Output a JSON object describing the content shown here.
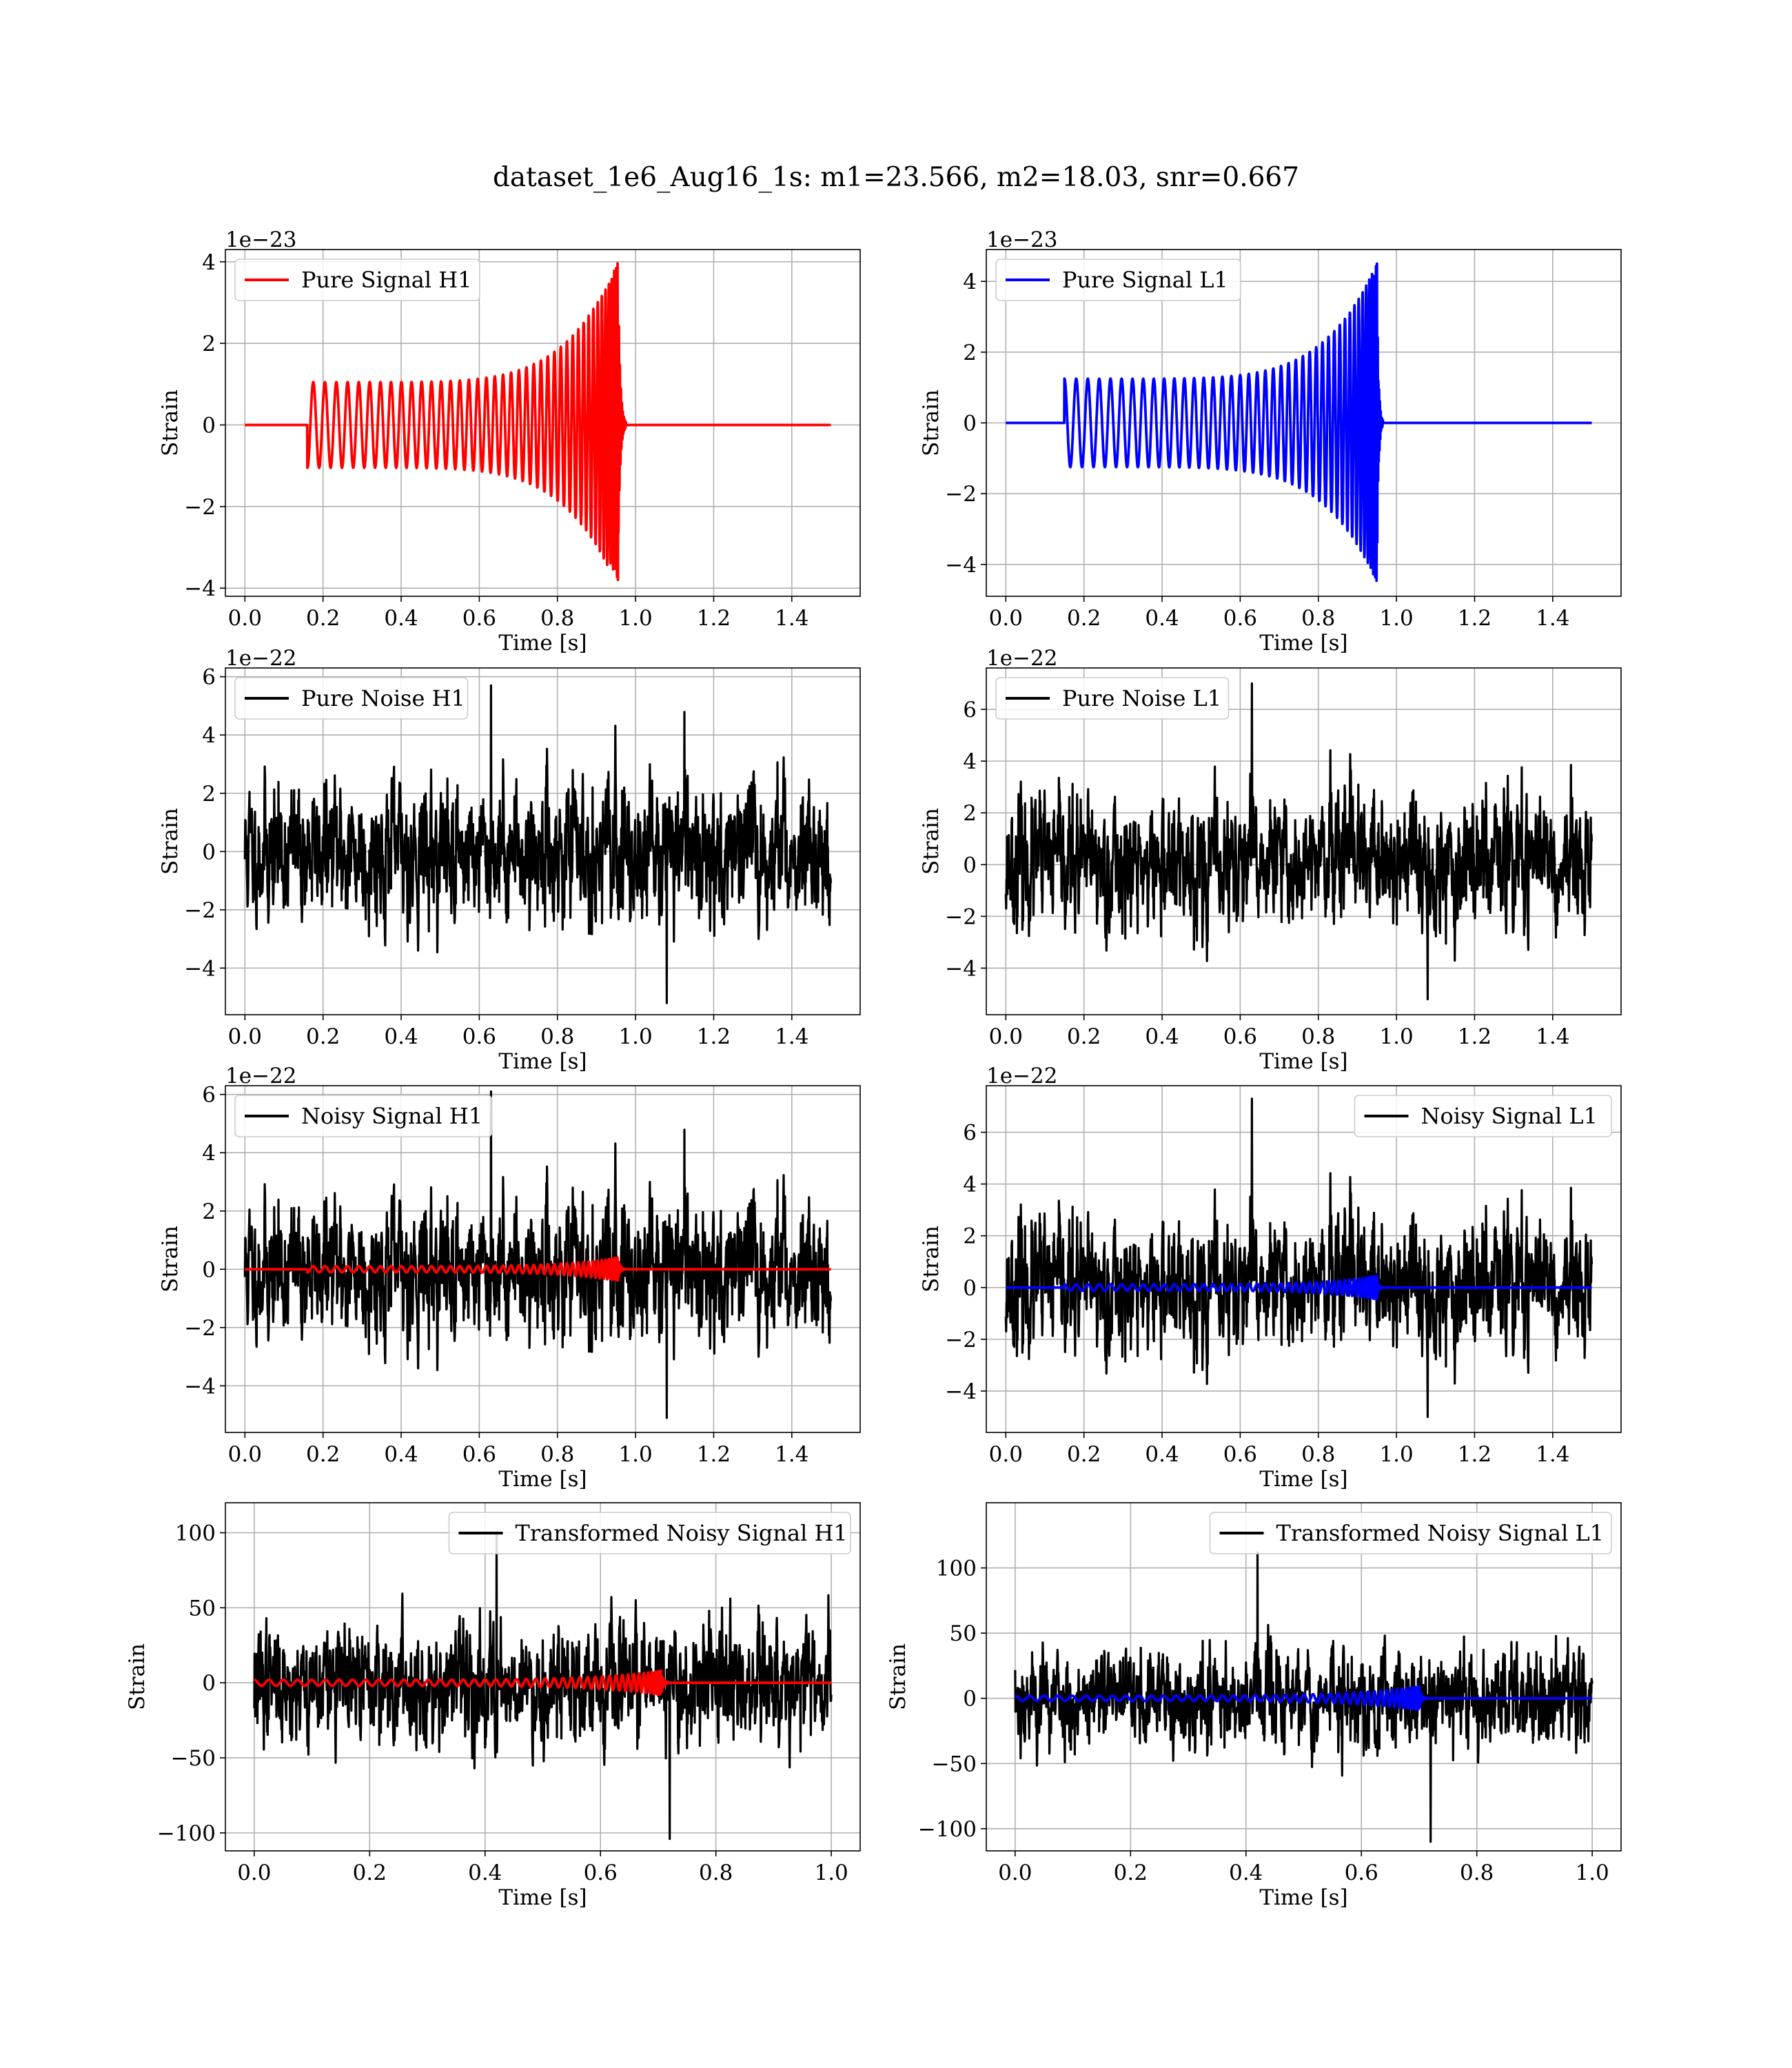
{
  "figure": {
    "title": "dataset_1e6_Aug16_1s: m1=23.566, m2=18.03, snr=0.667"
  },
  "colors": {
    "h1_signal": "#ff0000",
    "l1_signal": "#0000ff",
    "noise": "#000000",
    "grid": "#b0b0b0",
    "legend_border": "#cccccc"
  },
  "chart_data": [
    {
      "type": "line",
      "ylabel": "Strain",
      "xlabel": "Time [s]",
      "exponent_label": "1e−23",
      "xlim": [
        -0.05,
        1.575
      ],
      "ylim": [
        -4.2,
        4.3
      ],
      "xticks": [
        0.0,
        0.2,
        0.4,
        0.6,
        0.8,
        1.0,
        1.2,
        1.4
      ],
      "xtick_labels": [
        "0.0",
        "0.2",
        "0.4",
        "0.6",
        "0.8",
        "1.0",
        "1.2",
        "1.4"
      ],
      "yticks": [
        -4,
        -2,
        0,
        2,
        4
      ],
      "ytick_labels": [
        "−4",
        "−2",
        "0",
        "2",
        "4"
      ],
      "legend_placement": "top-left",
      "grid": true,
      "series": [
        {
          "name": "Pure Signal H1",
          "role": "signal",
          "color_key": "h1_signal",
          "t_start": 0.0,
          "t_end": 1.5,
          "chirp_start": 0.16,
          "merger": 0.955,
          "ringdown_end": 0.975,
          "amp_start": 1.05,
          "amp_peak": 4.0,
          "amp_min_peak": -3.8,
          "cycles": 42,
          "onset_value": -1.1
        }
      ]
    },
    {
      "type": "line",
      "ylabel": "Strain",
      "xlabel": "Time [s]",
      "exponent_label": "1e−23",
      "xlim": [
        -0.05,
        1.575
      ],
      "ylim": [
        -4.9,
        4.9
      ],
      "xticks": [
        0.0,
        0.2,
        0.4,
        0.6,
        0.8,
        1.0,
        1.2,
        1.4
      ],
      "xtick_labels": [
        "0.0",
        "0.2",
        "0.4",
        "0.6",
        "0.8",
        "1.0",
        "1.2",
        "1.4"
      ],
      "yticks": [
        -4,
        -2,
        0,
        2,
        4
      ],
      "ytick_labels": [
        "−4",
        "−2",
        "0",
        "2",
        "4"
      ],
      "legend_placement": "top-left",
      "grid": true,
      "series": [
        {
          "name": "Pure Signal L1",
          "role": "signal",
          "color_key": "l1_signal",
          "t_start": 0.0,
          "t_end": 1.5,
          "chirp_start": 0.15,
          "merger": 0.95,
          "ringdown_end": 0.965,
          "amp_start": 1.25,
          "amp_peak": 4.5,
          "amp_min_peak": -4.5,
          "cycles": 42,
          "onset_value": 1.25
        }
      ]
    },
    {
      "type": "line",
      "ylabel": "Strain",
      "xlabel": "Time [s]",
      "exponent_label": "1e−22",
      "xlim": [
        -0.05,
        1.575
      ],
      "ylim": [
        -5.6,
        6.3
      ],
      "xticks": [
        0.0,
        0.2,
        0.4,
        0.6,
        0.8,
        1.0,
        1.2,
        1.4
      ],
      "xtick_labels": [
        "0.0",
        "0.2",
        "0.4",
        "0.6",
        "0.8",
        "1.0",
        "1.2",
        "1.4"
      ],
      "yticks": [
        -4,
        -2,
        0,
        2,
        4,
        6
      ],
      "ytick_labels": [
        "−4",
        "−2",
        "0",
        "2",
        "4",
        "6"
      ],
      "legend_placement": "top-left",
      "grid": true,
      "series": [
        {
          "name": "Pure Noise H1",
          "role": "noise",
          "color_key": "noise",
          "t_start": 0.0,
          "t_end": 1.5,
          "typical_range": [
            -2.8,
            2.8
          ],
          "max": 5.7,
          "min": -5.2,
          "seed": 11
        }
      ]
    },
    {
      "type": "line",
      "ylabel": "Strain",
      "xlabel": "Time [s]",
      "exponent_label": "1e−22",
      "xlim": [
        -0.05,
        1.575
      ],
      "ylim": [
        -5.8,
        7.6
      ],
      "xticks": [
        0.0,
        0.2,
        0.4,
        0.6,
        0.8,
        1.0,
        1.2,
        1.4
      ],
      "xtick_labels": [
        "0.0",
        "0.2",
        "0.4",
        "0.6",
        "0.8",
        "1.0",
        "1.2",
        "1.4"
      ],
      "yticks": [
        -4,
        -2,
        0,
        2,
        4,
        6
      ],
      "ytick_labels": [
        "−4",
        "−2",
        "0",
        "2",
        "4",
        "6"
      ],
      "legend_placement": "top-left",
      "grid": true,
      "series": [
        {
          "name": "Pure Noise L1",
          "role": "noise",
          "color_key": "noise",
          "t_start": 0.0,
          "t_end": 1.5,
          "typical_range": [
            -3.0,
            3.0
          ],
          "max": 7.0,
          "min": -5.2,
          "seed": 23
        }
      ]
    },
    {
      "type": "line",
      "ylabel": "Strain",
      "xlabel": "Time [s]",
      "exponent_label": "1e−22",
      "xlim": [
        -0.05,
        1.575
      ],
      "ylim": [
        -5.6,
        6.3
      ],
      "xticks": [
        0.0,
        0.2,
        0.4,
        0.6,
        0.8,
        1.0,
        1.2,
        1.4
      ],
      "xtick_labels": [
        "0.0",
        "0.2",
        "0.4",
        "0.6",
        "0.8",
        "1.0",
        "1.2",
        "1.4"
      ],
      "yticks": [
        -4,
        -2,
        0,
        2,
        4,
        6
      ],
      "ytick_labels": [
        "−4",
        "−2",
        "0",
        "2",
        "4",
        "6"
      ],
      "legend_placement": "top-left",
      "grid": true,
      "series": [
        {
          "name": "Noisy Signal H1",
          "role": "noise",
          "color_key": "noise",
          "t_start": 0.0,
          "t_end": 1.5,
          "typical_range": [
            -2.8,
            2.8
          ],
          "max": 6.1,
          "min": -5.1,
          "seed": 11
        },
        {
          "role": "signal",
          "color_key": "h1_signal",
          "t_start": 0.0,
          "t_end": 1.5,
          "chirp_start": 0.16,
          "merger": 0.955,
          "ringdown_end": 0.975,
          "amp_start": 0.105,
          "amp_peak": 0.4,
          "amp_min_peak": -0.38,
          "cycles": 42,
          "onset_value": -0.11
        }
      ]
    },
    {
      "type": "line",
      "ylabel": "Strain",
      "xlabel": "Time [s]",
      "exponent_label": "1e−22",
      "xlim": [
        -0.05,
        1.575
      ],
      "ylim": [
        -5.6,
        7.8
      ],
      "xticks": [
        0.0,
        0.2,
        0.4,
        0.6,
        0.8,
        1.0,
        1.2,
        1.4
      ],
      "xtick_labels": [
        "0.0",
        "0.2",
        "0.4",
        "0.6",
        "0.8",
        "1.0",
        "1.2",
        "1.4"
      ],
      "yticks": [
        -4,
        -2,
        0,
        2,
        4,
        6
      ],
      "ytick_labels": [
        "−4",
        "−2",
        "0",
        "2",
        "4",
        "6"
      ],
      "legend_placement": "top-right",
      "grid": true,
      "series": [
        {
          "name": "Noisy Signal L1",
          "role": "noise",
          "color_key": "noise",
          "t_start": 0.0,
          "t_end": 1.5,
          "typical_range": [
            -3.0,
            3.0
          ],
          "max": 7.3,
          "min": -5.0,
          "seed": 23
        },
        {
          "role": "signal",
          "color_key": "l1_signal",
          "t_start": 0.0,
          "t_end": 1.5,
          "chirp_start": 0.15,
          "merger": 0.95,
          "ringdown_end": 0.965,
          "amp_start": 0.125,
          "amp_peak": 0.45,
          "amp_min_peak": -0.45,
          "cycles": 42,
          "onset_value": 0.125
        }
      ]
    },
    {
      "type": "line",
      "ylabel": "Strain",
      "xlabel": "Time [s]",
      "exponent_label": "",
      "xlim": [
        -0.05,
        1.05
      ],
      "ylim": [
        -112,
        120
      ],
      "xticks": [
        0.0,
        0.2,
        0.4,
        0.6,
        0.8,
        1.0
      ],
      "xtick_labels": [
        "0.0",
        "0.2",
        "0.4",
        "0.6",
        "0.8",
        "1.0"
      ],
      "yticks": [
        -100,
        -50,
        0,
        50,
        100
      ],
      "ytick_labels": [
        "−100",
        "−50",
        "0",
        "50",
        "100"
      ],
      "legend_placement": "top-right",
      "grid": true,
      "series": [
        {
          "name": "Transformed Noisy Signal H1",
          "role": "noise",
          "color_key": "noise",
          "t_start": 0.0,
          "t_end": 1.0,
          "typical_range": [
            -45,
            45
          ],
          "max": 100,
          "min": -104,
          "seed": 37
        },
        {
          "role": "signal",
          "color_key": "h1_signal",
          "t_start": 0.0,
          "t_end": 1.0,
          "chirp_start": 0.0,
          "merger": 0.705,
          "ringdown_end": 0.72,
          "amp_start": 2.0,
          "amp_peak": 8.0,
          "amp_min_peak": -8.0,
          "cycles": 44,
          "onset_value": 0.0
        }
      ]
    },
    {
      "type": "line",
      "ylabel": "Strain",
      "xlabel": "Time [s]",
      "exponent_label": "",
      "xlim": [
        -0.05,
        1.05
      ],
      "ylim": [
        -117,
        150
      ],
      "xticks": [
        0.0,
        0.2,
        0.4,
        0.6,
        0.8,
        1.0
      ],
      "xtick_labels": [
        "0.0",
        "0.2",
        "0.4",
        "0.6",
        "0.8",
        "1.0"
      ],
      "yticks": [
        -100,
        -50,
        0,
        50,
        100
      ],
      "ytick_labels": [
        "−100",
        "−50",
        "0",
        "50",
        "100"
      ],
      "legend_placement": "top-right",
      "grid": true,
      "series": [
        {
          "name": "Transformed Noisy Signal L1",
          "role": "noise",
          "color_key": "noise",
          "t_start": 0.0,
          "t_end": 1.0,
          "typical_range": [
            -45,
            45
          ],
          "max": 112,
          "min": -110,
          "seed": 53
        },
        {
          "role": "signal",
          "color_key": "l1_signal",
          "t_start": 0.0,
          "t_end": 1.0,
          "chirp_start": 0.0,
          "merger": 0.7,
          "ringdown_end": 0.715,
          "amp_start": 2.0,
          "amp_peak": 9.0,
          "amp_min_peak": -9.0,
          "cycles": 44,
          "onset_value": 0.0
        }
      ]
    }
  ]
}
